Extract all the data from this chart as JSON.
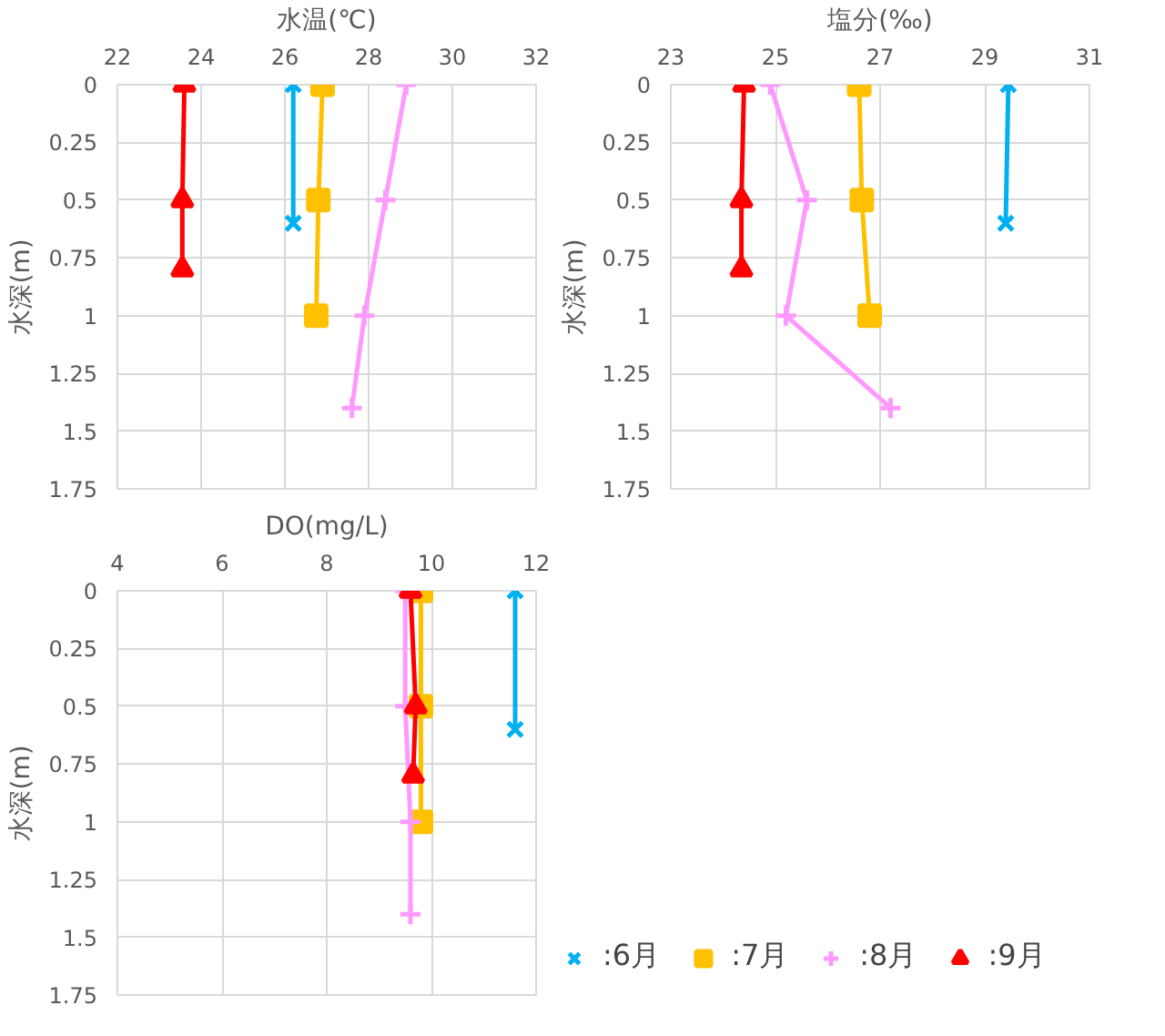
{
  "chart_data": [
    {
      "type": "line",
      "xlabel": "水温(℃)",
      "ylabel": "水深(m)",
      "xlim": [
        22,
        32
      ],
      "xticks": [
        22,
        24,
        26,
        28,
        30,
        32
      ],
      "ylim": [
        1.75,
        0
      ],
      "yticks": [
        0,
        0.25,
        0.5,
        0.75,
        1,
        1.25,
        1.5,
        1.75
      ],
      "grid": true,
      "legend": false,
      "series": [
        {
          "color": "#00b0f0",
          "marker": "x",
          "x": [
            26.2,
            26.2
          ],
          "values": [
            0,
            0.6
          ]
        },
        {
          "color": "#ffc000",
          "marker": "square",
          "x": [
            26.9,
            26.8,
            26.75
          ],
          "values": [
            0,
            0.5,
            1
          ]
        },
        {
          "color": "#ff99ff",
          "marker": "cross",
          "x": [
            28.9,
            28.4,
            27.9,
            27.6
          ],
          "values": [
            0,
            0.5,
            1,
            1.4
          ]
        },
        {
          "color": "#ff0000",
          "marker": "triangle",
          "x": [
            23.6,
            23.55,
            23.55
          ],
          "values": [
            0,
            0.5,
            0.8
          ]
        }
      ]
    },
    {
      "type": "line",
      "xlabel": "塩分(‰)",
      "ylabel": "水深(m)",
      "xlim": [
        23,
        31
      ],
      "xticks": [
        23,
        25,
        27,
        29,
        31
      ],
      "ylim": [
        1.75,
        0
      ],
      "yticks": [
        0,
        0.25,
        0.5,
        0.75,
        1,
        1.25,
        1.5,
        1.75
      ],
      "grid": true,
      "legend": false,
      "series": [
        {
          "color": "#00b0f0",
          "marker": "x",
          "x": [
            29.45,
            29.4
          ],
          "values": [
            0,
            0.6
          ]
        },
        {
          "color": "#ffc000",
          "marker": "square",
          "x": [
            26.6,
            26.65,
            26.8
          ],
          "values": [
            0,
            0.5,
            1
          ]
        },
        {
          "color": "#ff99ff",
          "marker": "cross",
          "x": [
            24.9,
            25.6,
            25.2,
            27.2
          ],
          "values": [
            0,
            0.5,
            1,
            1.4
          ]
        },
        {
          "color": "#ff0000",
          "marker": "triangle",
          "x": [
            24.4,
            24.35,
            24.35
          ],
          "values": [
            0,
            0.5,
            0.8
          ]
        }
      ]
    },
    {
      "type": "line",
      "xlabel": "DO(mg/L)",
      "ylabel": "水深(m)",
      "xlim": [
        4,
        12
      ],
      "xticks": [
        4,
        6,
        8,
        10,
        12
      ],
      "ylim": [
        1.75,
        0
      ],
      "yticks": [
        0,
        0.25,
        0.5,
        0.75,
        1,
        1.25,
        1.5,
        1.75
      ],
      "grid": true,
      "legend": "right",
      "series": [
        {
          "name": ":6月",
          "color": "#00b0f0",
          "marker": "x",
          "x": [
            11.6,
            11.6
          ],
          "values": [
            0,
            0.6
          ]
        },
        {
          "name": ":7月",
          "color": "#ffc000",
          "marker": "square",
          "x": [
            9.8,
            9.8,
            9.8
          ],
          "values": [
            0,
            0.5,
            1
          ]
        },
        {
          "name": ":8月",
          "color": "#ff99ff",
          "marker": "cross",
          "x": [
            9.5,
            9.5,
            9.6,
            9.6
          ],
          "values": [
            0,
            0.5,
            1,
            1.4
          ]
        },
        {
          "name": ":9月",
          "color": "#ff0000",
          "marker": "triangle",
          "x": [
            9.6,
            9.7,
            9.65
          ],
          "values": [
            0,
            0.5,
            0.8
          ]
        }
      ]
    }
  ]
}
